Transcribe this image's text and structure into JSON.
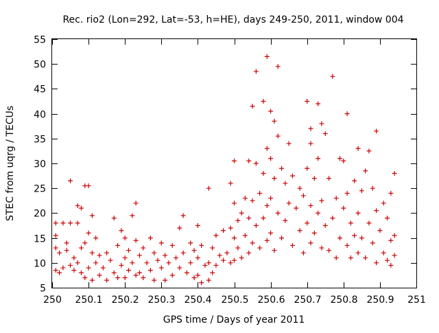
{
  "chart_data": {
    "type": "scatter",
    "title": "Rec. rio2 (Lon=292, Lat=-53, h=HE), days 249-250, 2011, window 004",
    "xlabel": "GPS time / Days of year 2011",
    "ylabel": "STEC from uqrg / TECUs",
    "xlim": [
      250,
      251
    ],
    "ylim": [
      5,
      55
    ],
    "xticks": [
      "250",
      "250.1",
      "250.2",
      "250.3",
      "250.4",
      "250.5",
      "250.6",
      "250.7",
      "250.8",
      "250.9",
      "251"
    ],
    "yticks": [
      "5",
      "10",
      "15",
      "20",
      "25",
      "30",
      "35",
      "40",
      "45",
      "50",
      "55"
    ],
    "grid": false,
    "marker": "+",
    "color": "#cc0000",
    "series": [
      {
        "points": [
          [
            250.01,
            8.5
          ],
          [
            250.01,
            13.0
          ],
          [
            250.01,
            15.5
          ],
          [
            250.01,
            18.0
          ],
          [
            250.02,
            8.0
          ],
          [
            250.02,
            12.0
          ],
          [
            250.03,
            9.0
          ],
          [
            250.03,
            18.0
          ],
          [
            250.04,
            12.5
          ],
          [
            250.04,
            14.0
          ],
          [
            250.05,
            26.5
          ],
          [
            250.05,
            18.0
          ],
          [
            250.05,
            9.5
          ],
          [
            250.06,
            8.5
          ],
          [
            250.06,
            11.0
          ],
          [
            250.07,
            21.5
          ],
          [
            250.07,
            18.0
          ],
          [
            250.07,
            10.0
          ],
          [
            250.08,
            21.0
          ],
          [
            250.08,
            13.0
          ],
          [
            250.08,
            8.0
          ],
          [
            250.09,
            25.5
          ],
          [
            250.09,
            14.0
          ],
          [
            250.09,
            7.0
          ],
          [
            250.1,
            25.5
          ],
          [
            250.1,
            16.0
          ],
          [
            250.1,
            9.0
          ],
          [
            250.11,
            19.5
          ],
          [
            250.11,
            12.0
          ],
          [
            250.11,
            6.5
          ],
          [
            250.12,
            15.0
          ],
          [
            250.12,
            10.0
          ],
          [
            250.13,
            11.5
          ],
          [
            250.13,
            7.5
          ],
          [
            250.14,
            9.0
          ],
          [
            250.15,
            12.0
          ],
          [
            250.15,
            6.5
          ],
          [
            250.16,
            10.5
          ],
          [
            250.17,
            19.0
          ],
          [
            250.17,
            8.0
          ],
          [
            250.18,
            13.5
          ],
          [
            250.18,
            7.0
          ],
          [
            250.19,
            16.5
          ],
          [
            250.19,
            9.5
          ],
          [
            250.2,
            15.0
          ],
          [
            250.2,
            11.0
          ],
          [
            250.2,
            7.0
          ],
          [
            250.21,
            12.5
          ],
          [
            250.21,
            8.5
          ],
          [
            250.22,
            19.5
          ],
          [
            250.22,
            10.0
          ],
          [
            250.23,
            22.0
          ],
          [
            250.23,
            14.5
          ],
          [
            250.23,
            7.5
          ],
          [
            250.24,
            11.5
          ],
          [
            250.24,
            8.0
          ],
          [
            250.25,
            13.0
          ],
          [
            250.25,
            7.0
          ],
          [
            250.26,
            10.0
          ],
          [
            250.27,
            15.0
          ],
          [
            250.27,
            8.5
          ],
          [
            250.28,
            12.0
          ],
          [
            250.28,
            6.5
          ],
          [
            250.29,
            10.5
          ],
          [
            250.3,
            14.0
          ],
          [
            250.3,
            9.0
          ],
          [
            250.31,
            11.5
          ],
          [
            250.31,
            6.5
          ],
          [
            250.32,
            10.0
          ],
          [
            250.33,
            13.5
          ],
          [
            250.33,
            7.5
          ],
          [
            250.34,
            11.0
          ],
          [
            250.35,
            17.0
          ],
          [
            250.35,
            9.0
          ],
          [
            250.36,
            19.5
          ],
          [
            250.36,
            12.0
          ],
          [
            250.37,
            8.0
          ],
          [
            250.38,
            14.0
          ],
          [
            250.38,
            10.0
          ],
          [
            250.39,
            12.5
          ],
          [
            250.39,
            7.0
          ],
          [
            250.4,
            17.5
          ],
          [
            250.4,
            11.0
          ],
          [
            250.4,
            7.5
          ],
          [
            250.41,
            13.5
          ],
          [
            250.41,
            6.0
          ],
          [
            250.42,
            9.5
          ],
          [
            250.43,
            25.0
          ],
          [
            250.43,
            10.0
          ],
          [
            250.43,
            6.5
          ],
          [
            250.44,
            13.0
          ],
          [
            250.44,
            8.0
          ],
          [
            250.45,
            15.5
          ],
          [
            250.45,
            9.5
          ],
          [
            250.46,
            11.5
          ],
          [
            250.47,
            16.5
          ],
          [
            250.47,
            10.5
          ],
          [
            250.48,
            12.0
          ],
          [
            250.49,
            26.0
          ],
          [
            250.49,
            17.0
          ],
          [
            250.49,
            10.0
          ],
          [
            250.5,
            30.5
          ],
          [
            250.5,
            22.0
          ],
          [
            250.5,
            15.0
          ],
          [
            250.5,
            10.5
          ],
          [
            250.51,
            18.5
          ],
          [
            250.51,
            13.0
          ],
          [
            250.52,
            20.0
          ],
          [
            250.52,
            11.0
          ],
          [
            250.53,
            23.0
          ],
          [
            250.53,
            15.5
          ],
          [
            250.54,
            30.5
          ],
          [
            250.54,
            19.0
          ],
          [
            250.54,
            12.0
          ],
          [
            250.55,
            41.5
          ],
          [
            250.55,
            22.5
          ],
          [
            250.55,
            14.0
          ],
          [
            250.56,
            48.5
          ],
          [
            250.56,
            30.0
          ],
          [
            250.56,
            17.5
          ],
          [
            250.57,
            24.0
          ],
          [
            250.57,
            13.0
          ],
          [
            250.58,
            42.5
          ],
          [
            250.58,
            28.0
          ],
          [
            250.58,
            19.0
          ],
          [
            250.59,
            51.5
          ],
          [
            250.59,
            33.0
          ],
          [
            250.59,
            21.5
          ],
          [
            250.59,
            14.5
          ],
          [
            250.6,
            40.5
          ],
          [
            250.6,
            31.0
          ],
          [
            250.6,
            23.0
          ],
          [
            250.6,
            16.0
          ],
          [
            250.61,
            38.5
          ],
          [
            250.61,
            27.0
          ],
          [
            250.61,
            12.5
          ],
          [
            250.62,
            49.5
          ],
          [
            250.62,
            35.5
          ],
          [
            250.62,
            20.0
          ],
          [
            250.63,
            29.0
          ],
          [
            250.63,
            15.0
          ],
          [
            250.64,
            26.0
          ],
          [
            250.64,
            18.5
          ],
          [
            250.65,
            34.0
          ],
          [
            250.65,
            22.0
          ],
          [
            250.66,
            27.5
          ],
          [
            250.66,
            13.5
          ],
          [
            250.67,
            21.0
          ],
          [
            250.68,
            25.0
          ],
          [
            250.68,
            16.5
          ],
          [
            250.69,
            23.5
          ],
          [
            250.69,
            12.0
          ],
          [
            250.7,
            42.5
          ],
          [
            250.7,
            29.0
          ],
          [
            250.7,
            18.0
          ],
          [
            250.71,
            37.0
          ],
          [
            250.71,
            34.0
          ],
          [
            250.71,
            21.5
          ],
          [
            250.71,
            14.0
          ],
          [
            250.72,
            27.0
          ],
          [
            250.72,
            16.0
          ],
          [
            250.73,
            42.0
          ],
          [
            250.73,
            31.0
          ],
          [
            250.73,
            20.0
          ],
          [
            250.74,
            38.0
          ],
          [
            250.74,
            22.5
          ],
          [
            250.74,
            13.0
          ],
          [
            250.75,
            36.0
          ],
          [
            250.75,
            17.5
          ],
          [
            250.76,
            27.0
          ],
          [
            250.76,
            12.5
          ],
          [
            250.77,
            47.5
          ],
          [
            250.77,
            19.0
          ],
          [
            250.78,
            23.0
          ],
          [
            250.78,
            11.0
          ],
          [
            250.79,
            31.0
          ],
          [
            250.79,
            15.0
          ],
          [
            250.8,
            30.5
          ],
          [
            250.8,
            21.0
          ],
          [
            250.81,
            40.0
          ],
          [
            250.81,
            24.0
          ],
          [
            250.81,
            13.5
          ],
          [
            250.82,
            18.0
          ],
          [
            250.82,
            11.0
          ],
          [
            250.83,
            26.5
          ],
          [
            250.83,
            15.5
          ],
          [
            250.84,
            33.0
          ],
          [
            250.84,
            20.0
          ],
          [
            250.84,
            12.0
          ],
          [
            250.85,
            24.5
          ],
          [
            250.85,
            15.0
          ],
          [
            250.86,
            28.5
          ],
          [
            250.86,
            11.0
          ],
          [
            250.87,
            32.5
          ],
          [
            250.87,
            18.0
          ],
          [
            250.88,
            25.0
          ],
          [
            250.88,
            14.0
          ],
          [
            250.89,
            36.5
          ],
          [
            250.89,
            20.5
          ],
          [
            250.89,
            10.0
          ],
          [
            250.9,
            16.5
          ],
          [
            250.91,
            22.0
          ],
          [
            250.91,
            12.0
          ],
          [
            250.92,
            19.0
          ],
          [
            250.92,
            10.5
          ],
          [
            250.93,
            24.0
          ],
          [
            250.93,
            14.5
          ],
          [
            250.93,
            9.5
          ],
          [
            250.94,
            28.0
          ],
          [
            250.94,
            15.5
          ],
          [
            250.94,
            11.5
          ]
        ]
      }
    ]
  }
}
